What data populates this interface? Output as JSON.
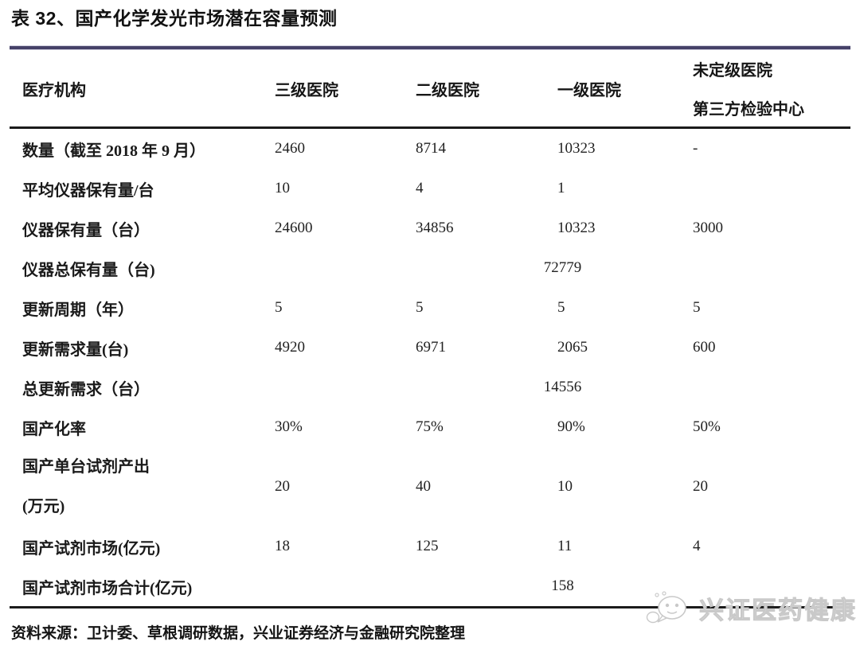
{
  "title": "表 32、国产化学发光市场潜在容量预测",
  "table": {
    "header": {
      "col1": "医疗机构",
      "col2": "三级医院",
      "col3": "二级医院",
      "col4": "一级医院",
      "col5_line1": "未定级医院",
      "col5_line2": "第三方检验中心"
    },
    "rows": [
      {
        "label": "数量（截至 2018 年 9 月）",
        "values": [
          "2460",
          "8714",
          "10323",
          "-"
        ]
      },
      {
        "label": "平均仪器保有量/台",
        "values": [
          "10",
          "4",
          "1",
          ""
        ]
      },
      {
        "label": "仪器保有量（台）",
        "values": [
          "24600",
          "34856",
          "10323",
          "3000"
        ]
      },
      {
        "label": "仪器总保有量（台)",
        "merged_value": "72779"
      },
      {
        "label": "更新周期（年）",
        "values": [
          "5",
          "5",
          "5",
          "5"
        ]
      },
      {
        "label": "更新需求量(台)",
        "values": [
          "4920",
          "6971",
          "2065",
          "600"
        ]
      },
      {
        "label": "总更新需求（台）",
        "merged_value": "14556"
      },
      {
        "label": "国产化率",
        "values": [
          "30%",
          "75%",
          "90%",
          "50%"
        ]
      },
      {
        "label": "国产单台试剂产出",
        "label_line2": "(万元)",
        "tall": true,
        "values": [
          "20",
          "40",
          "10",
          "20"
        ]
      },
      {
        "label": "国产试剂市场(亿元)",
        "values": [
          "18",
          "125",
          "11",
          "4"
        ]
      },
      {
        "label": "国产试剂市场合计(亿元)",
        "merged_value": "158"
      }
    ]
  },
  "footer": {
    "source": "资料来源：卫计委、草根调研数据，兴业证券经济与金融研究院整理"
  },
  "watermark": {
    "text": "兴证医药健康",
    "icon": "wechat-bubbles-icon"
  },
  "colors": {
    "top_rule": "#454168",
    "table_rule": "#1b1b1b",
    "watermark_gray": "#c9c9c9"
  }
}
